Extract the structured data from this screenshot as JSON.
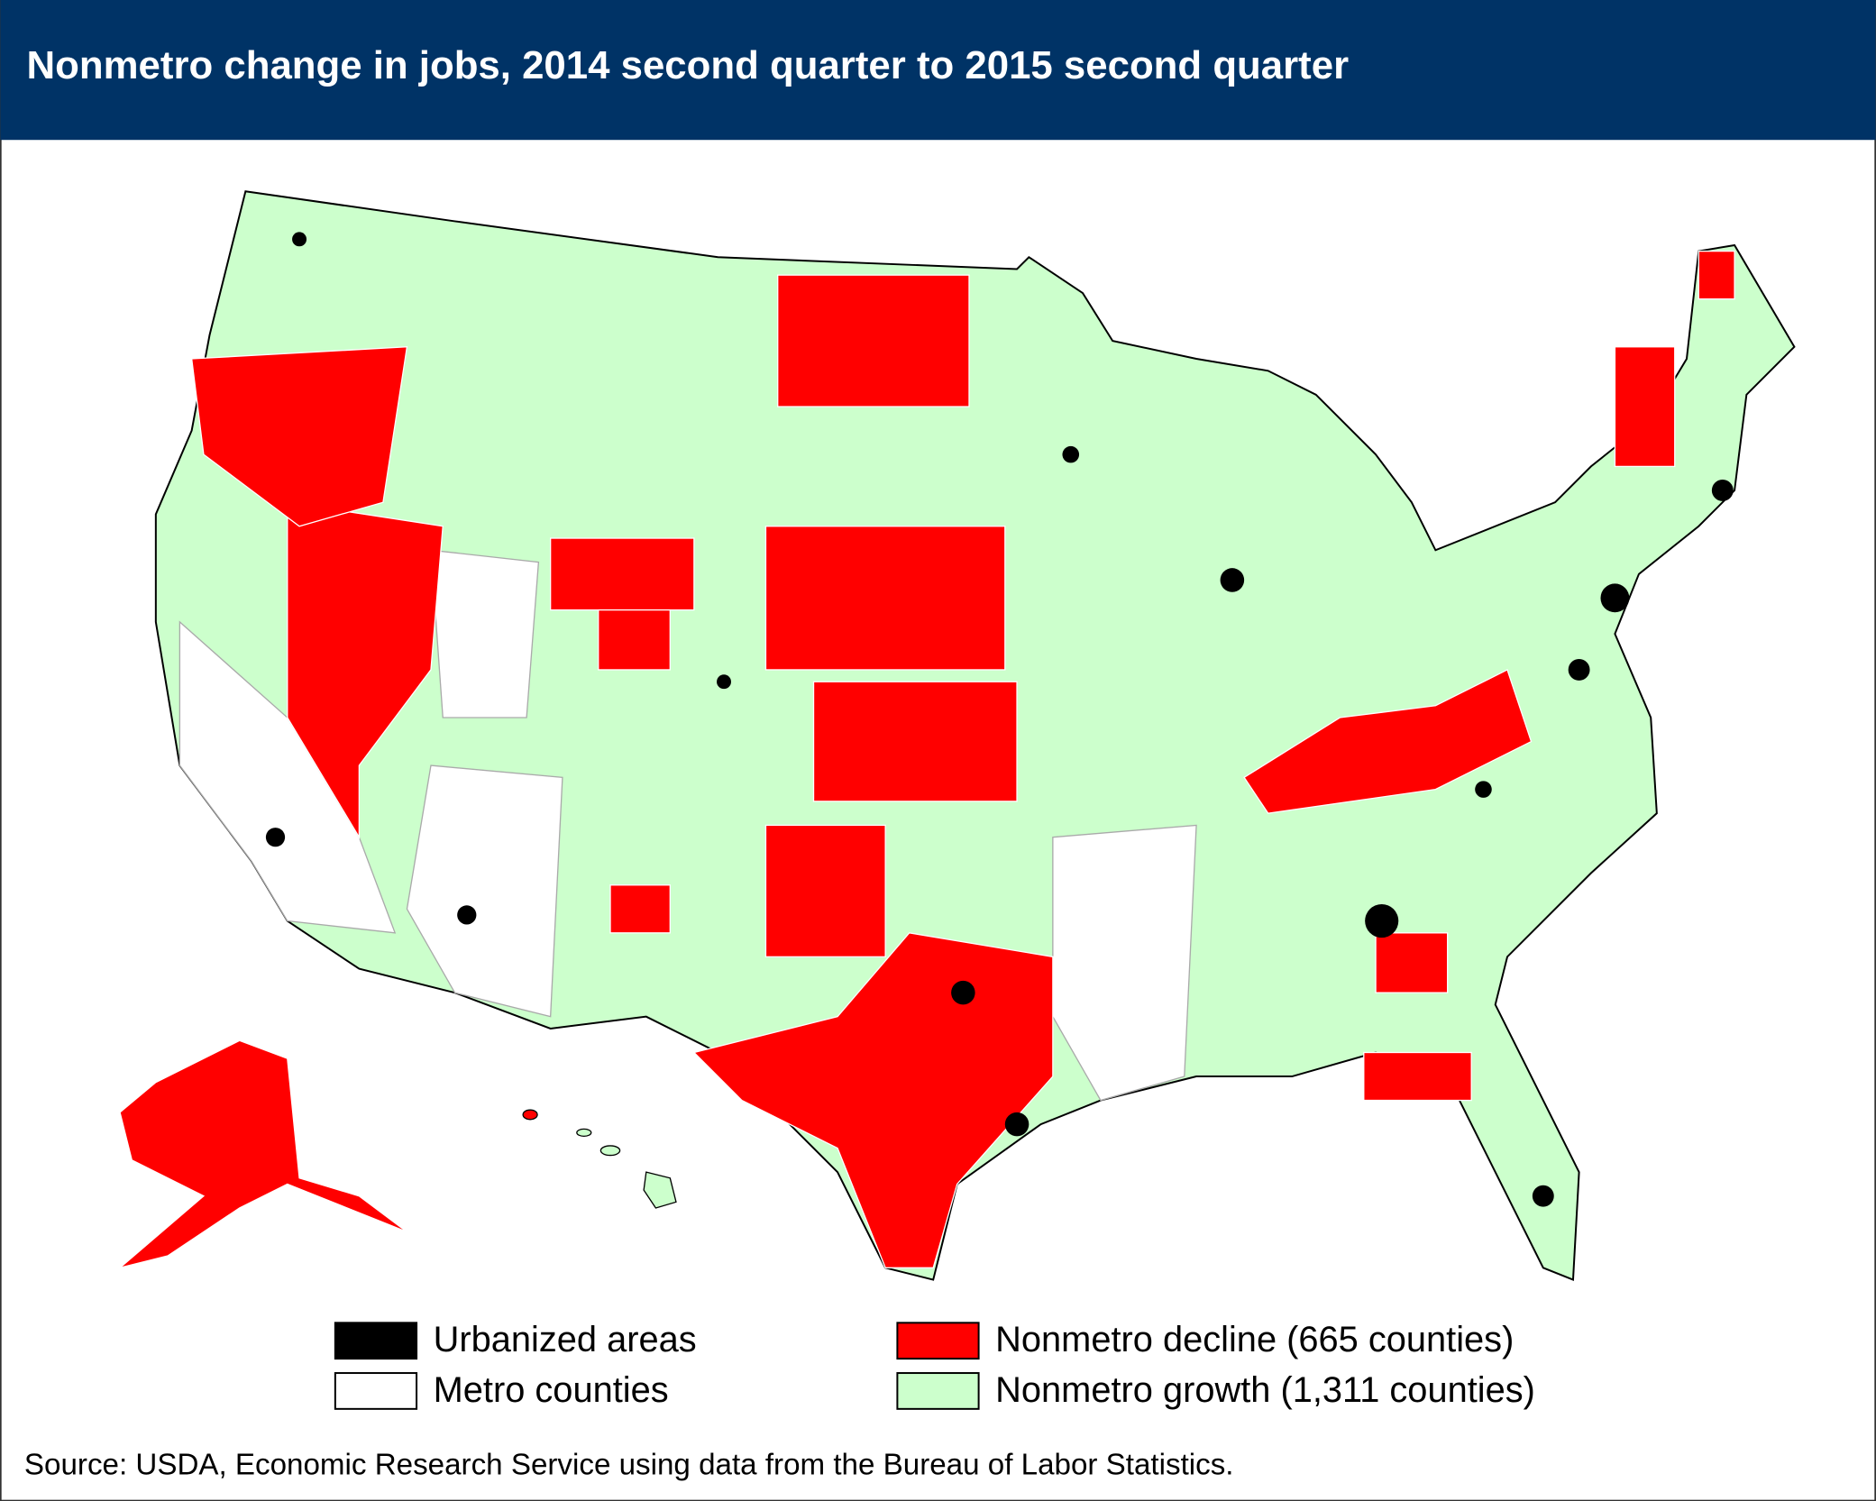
{
  "header": {
    "title": "Nonmetro change in jobs, 2014 second quarter to 2015 second quarter"
  },
  "legend": {
    "items": [
      {
        "label": "Urbanized areas",
        "color": "#000000"
      },
      {
        "label": "Metro counties",
        "color": "#ffffff"
      },
      {
        "label": "Nonmetro decline (665 counties)",
        "color": "#ff0000"
      },
      {
        "label": "Nonmetro growth (1,311 counties)",
        "color": "#ccffcc"
      }
    ]
  },
  "footer": {
    "source": "Source: USDA, Economic Research Service using data from the Bureau of Labor Statistics."
  }
}
